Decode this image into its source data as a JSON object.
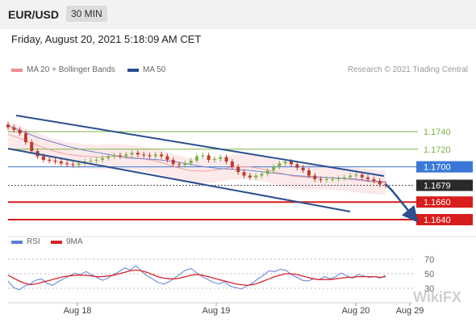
{
  "header": {
    "pair": "EUR/USD",
    "timeframe": "30 MIN"
  },
  "datetime": "Friday, August 20, 2021 5:18:09 AM CET",
  "legend": {
    "bb_label": "MA 20 + Bollinger Bands",
    "ma50_label": "MA 50"
  },
  "copyright": "Research © 2021 Trading Central",
  "watermark": "WikiFX",
  "rsi_legend": {
    "rsi_label": "RSI",
    "ma_label": "9MA"
  },
  "colors": {
    "rsi": "#5b7fd6",
    "rsi_ma": "#d9232a",
    "ma50": "#2b4f8f",
    "bb": "#f08a8a",
    "support": "#d91c1c",
    "resistance": "#7cb342",
    "pivot": "#3a78d8"
  },
  "chart_data": [
    {
      "type": "line",
      "x_ticks": [
        "Aug 18",
        "Aug 19",
        "Aug 20",
        "Aug 29"
      ],
      "ylim": [
        1.162,
        1.176
      ],
      "series": [
        {
          "name": "EUR/USD",
          "values": [
            1.1745,
            1.1742,
            1.1738,
            1.1728,
            1.1718,
            1.1712,
            1.1708,
            1.1707,
            1.1706,
            1.1704,
            1.1703,
            1.1702,
            1.1704,
            1.1706,
            1.1707,
            1.1708,
            1.171,
            1.1712,
            1.1713,
            1.1712,
            1.1714,
            1.1716,
            1.1714,
            1.1713,
            1.1712,
            1.1714,
            1.1712,
            1.1708,
            1.1703,
            1.1702,
            1.1704,
            1.1707,
            1.1712,
            1.1713,
            1.1708,
            1.1709,
            1.1711,
            1.1706,
            1.17,
            1.1694,
            1.169,
            1.1688,
            1.169,
            1.1692,
            1.1696,
            1.17,
            1.1704,
            1.1706,
            1.1703,
            1.1699,
            1.1696,
            1.169,
            1.1686,
            1.1685,
            1.1686,
            1.1686,
            1.1687,
            1.1688,
            1.169,
            1.1691,
            1.1688,
            1.1686,
            1.1684,
            1.168,
            1.1679
          ]
        },
        {
          "name": "MA 20",
          "values": [
            1.1737,
            1.1731,
            1.1724,
            1.1718,
            1.1714,
            1.1712,
            1.1711,
            1.1712,
            1.1711,
            1.1709,
            1.1706,
            1.17,
            1.1696,
            1.1695,
            1.1697,
            1.17,
            1.17,
            1.1697,
            1.1693,
            1.1689,
            1.1688,
            1.1688,
            1.1687,
            1.1685,
            1.1683,
            1.1682
          ]
        },
        {
          "name": "MA 50",
          "values": [
            1.1747,
            1.174,
            1.1733,
            1.1728,
            1.1723,
            1.1719,
            1.1716,
            1.1713,
            1.171,
            1.1709,
            1.1708,
            1.1706,
            1.1703,
            1.17,
            1.1698,
            1.1697,
            1.1696,
            1.1694,
            1.1692,
            1.169,
            1.1689,
            1.1688,
            1.1687,
            1.1686,
            1.1684,
            1.1683
          ]
        }
      ],
      "levels": [
        {
          "value": 1.174,
          "label": "1.1740",
          "role": "resistance"
        },
        {
          "value": 1.172,
          "label": "1.1720",
          "role": "resistance"
        },
        {
          "value": 1.17,
          "label": "1.1700",
          "role": "pivot"
        },
        {
          "value": 1.1679,
          "label": "1.1679",
          "role": "last"
        },
        {
          "value": 1.166,
          "label": "1.1660",
          "role": "support"
        },
        {
          "value": 1.164,
          "label": "1.1640",
          "role": "support"
        }
      ]
    },
    {
      "type": "line",
      "title": "RSI",
      "ylim": [
        10,
        80
      ],
      "y_ticks": [
        30,
        50,
        70
      ],
      "series": [
        {
          "name": "RSI",
          "values": [
            40,
            31,
            28,
            33,
            36,
            41,
            43,
            37,
            34,
            39,
            43,
            47,
            51,
            49,
            53,
            49,
            45,
            41,
            44,
            49,
            53,
            58,
            55,
            61,
            54,
            47,
            43,
            38,
            36,
            39,
            44,
            50,
            55,
            57,
            51,
            46,
            42,
            38,
            36,
            39,
            33,
            31,
            29,
            33,
            37,
            43,
            48,
            54,
            53,
            56,
            55,
            49,
            45,
            41,
            40,
            43,
            42,
            46,
            43,
            46,
            51,
            47,
            44,
            49,
            47,
            45,
            46,
            44,
            48
          ]
        },
        {
          "name": "9MA",
          "values": [
            48,
            44,
            40,
            37,
            35,
            36,
            38,
            40,
            42,
            44,
            46,
            47,
            48,
            48,
            48,
            47,
            46,
            46,
            47,
            48,
            50,
            52,
            54,
            55,
            54,
            52,
            49,
            46,
            44,
            43,
            43,
            44,
            46,
            48,
            49,
            48,
            46,
            44,
            42,
            40,
            38,
            36,
            35,
            34,
            35,
            37,
            40,
            43,
            46,
            48,
            50,
            50,
            49,
            47,
            45,
            43,
            42,
            42,
            42,
            43,
            44,
            45,
            45,
            46,
            46,
            46,
            46,
            45,
            46
          ]
        }
      ]
    }
  ]
}
